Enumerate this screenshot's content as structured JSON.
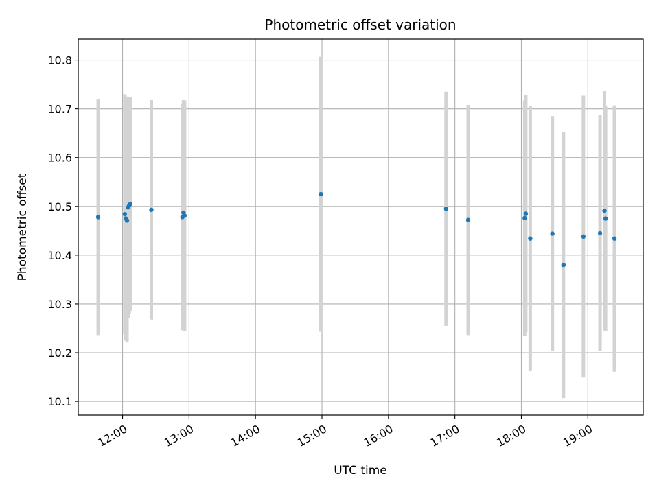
{
  "chart_data": {
    "type": "scatter",
    "title": "Photometric offset variation",
    "xlabel": "UTC time",
    "ylabel": "Photometric offset",
    "x_axis": "time (HH:MM)",
    "xlim": [
      "11:20",
      "19:50"
    ],
    "ylim": [
      10.072,
      10.843
    ],
    "xticks": [
      "12:00",
      "13:00",
      "14:00",
      "15:00",
      "16:00",
      "17:00",
      "18:00",
      "19:00"
    ],
    "yticks": [
      "10.1",
      "10.2",
      "10.3",
      "10.4",
      "10.5",
      "10.6",
      "10.7",
      "10.8"
    ],
    "grid": true,
    "marker_color": "#1f77b4",
    "errorbar_color": "#d3d3d3",
    "points": [
      {
        "x": "11:38",
        "y": 10.478,
        "err": 0.242
      },
      {
        "x": "12:02",
        "y": 10.484,
        "err": 0.246
      },
      {
        "x": "12:03",
        "y": 10.475,
        "err": 0.25
      },
      {
        "x": "12:04",
        "y": 10.471,
        "err": 0.25
      },
      {
        "x": "12:05",
        "y": 10.498,
        "err": 0.227
      },
      {
        "x": "12:06",
        "y": 10.502,
        "err": 0.222
      },
      {
        "x": "12:07",
        "y": 10.505,
        "err": 0.219
      },
      {
        "x": "12:26",
        "y": 10.493,
        "err": 0.225
      },
      {
        "x": "12:54",
        "y": 10.478,
        "err": 0.232
      },
      {
        "x": "12:55",
        "y": 10.487,
        "err": 0.231
      },
      {
        "x": "12:56",
        "y": 10.481,
        "err": 0.236
      },
      {
        "x": "14:59",
        "y": 10.525,
        "err": 0.282
      },
      {
        "x": "16:52",
        "y": 10.495,
        "err": 0.24
      },
      {
        "x": "17:12",
        "y": 10.472,
        "err": 0.236
      },
      {
        "x": "18:03",
        "y": 10.476,
        "err": 0.241
      },
      {
        "x": "18:04",
        "y": 10.485,
        "err": 0.243
      },
      {
        "x": "18:08",
        "y": 10.434,
        "err": 0.272
      },
      {
        "x": "18:28",
        "y": 10.444,
        "err": 0.241
      },
      {
        "x": "18:38",
        "y": 10.38,
        "err": 0.273
      },
      {
        "x": "18:56",
        "y": 10.438,
        "err": 0.289
      },
      {
        "x": "19:11",
        "y": 10.445,
        "err": 0.242
      },
      {
        "x": "19:15",
        "y": 10.491,
        "err": 0.245
      },
      {
        "x": "19:16",
        "y": 10.475,
        "err": 0.23
      },
      {
        "x": "19:24",
        "y": 10.434,
        "err": 0.273
      }
    ]
  }
}
